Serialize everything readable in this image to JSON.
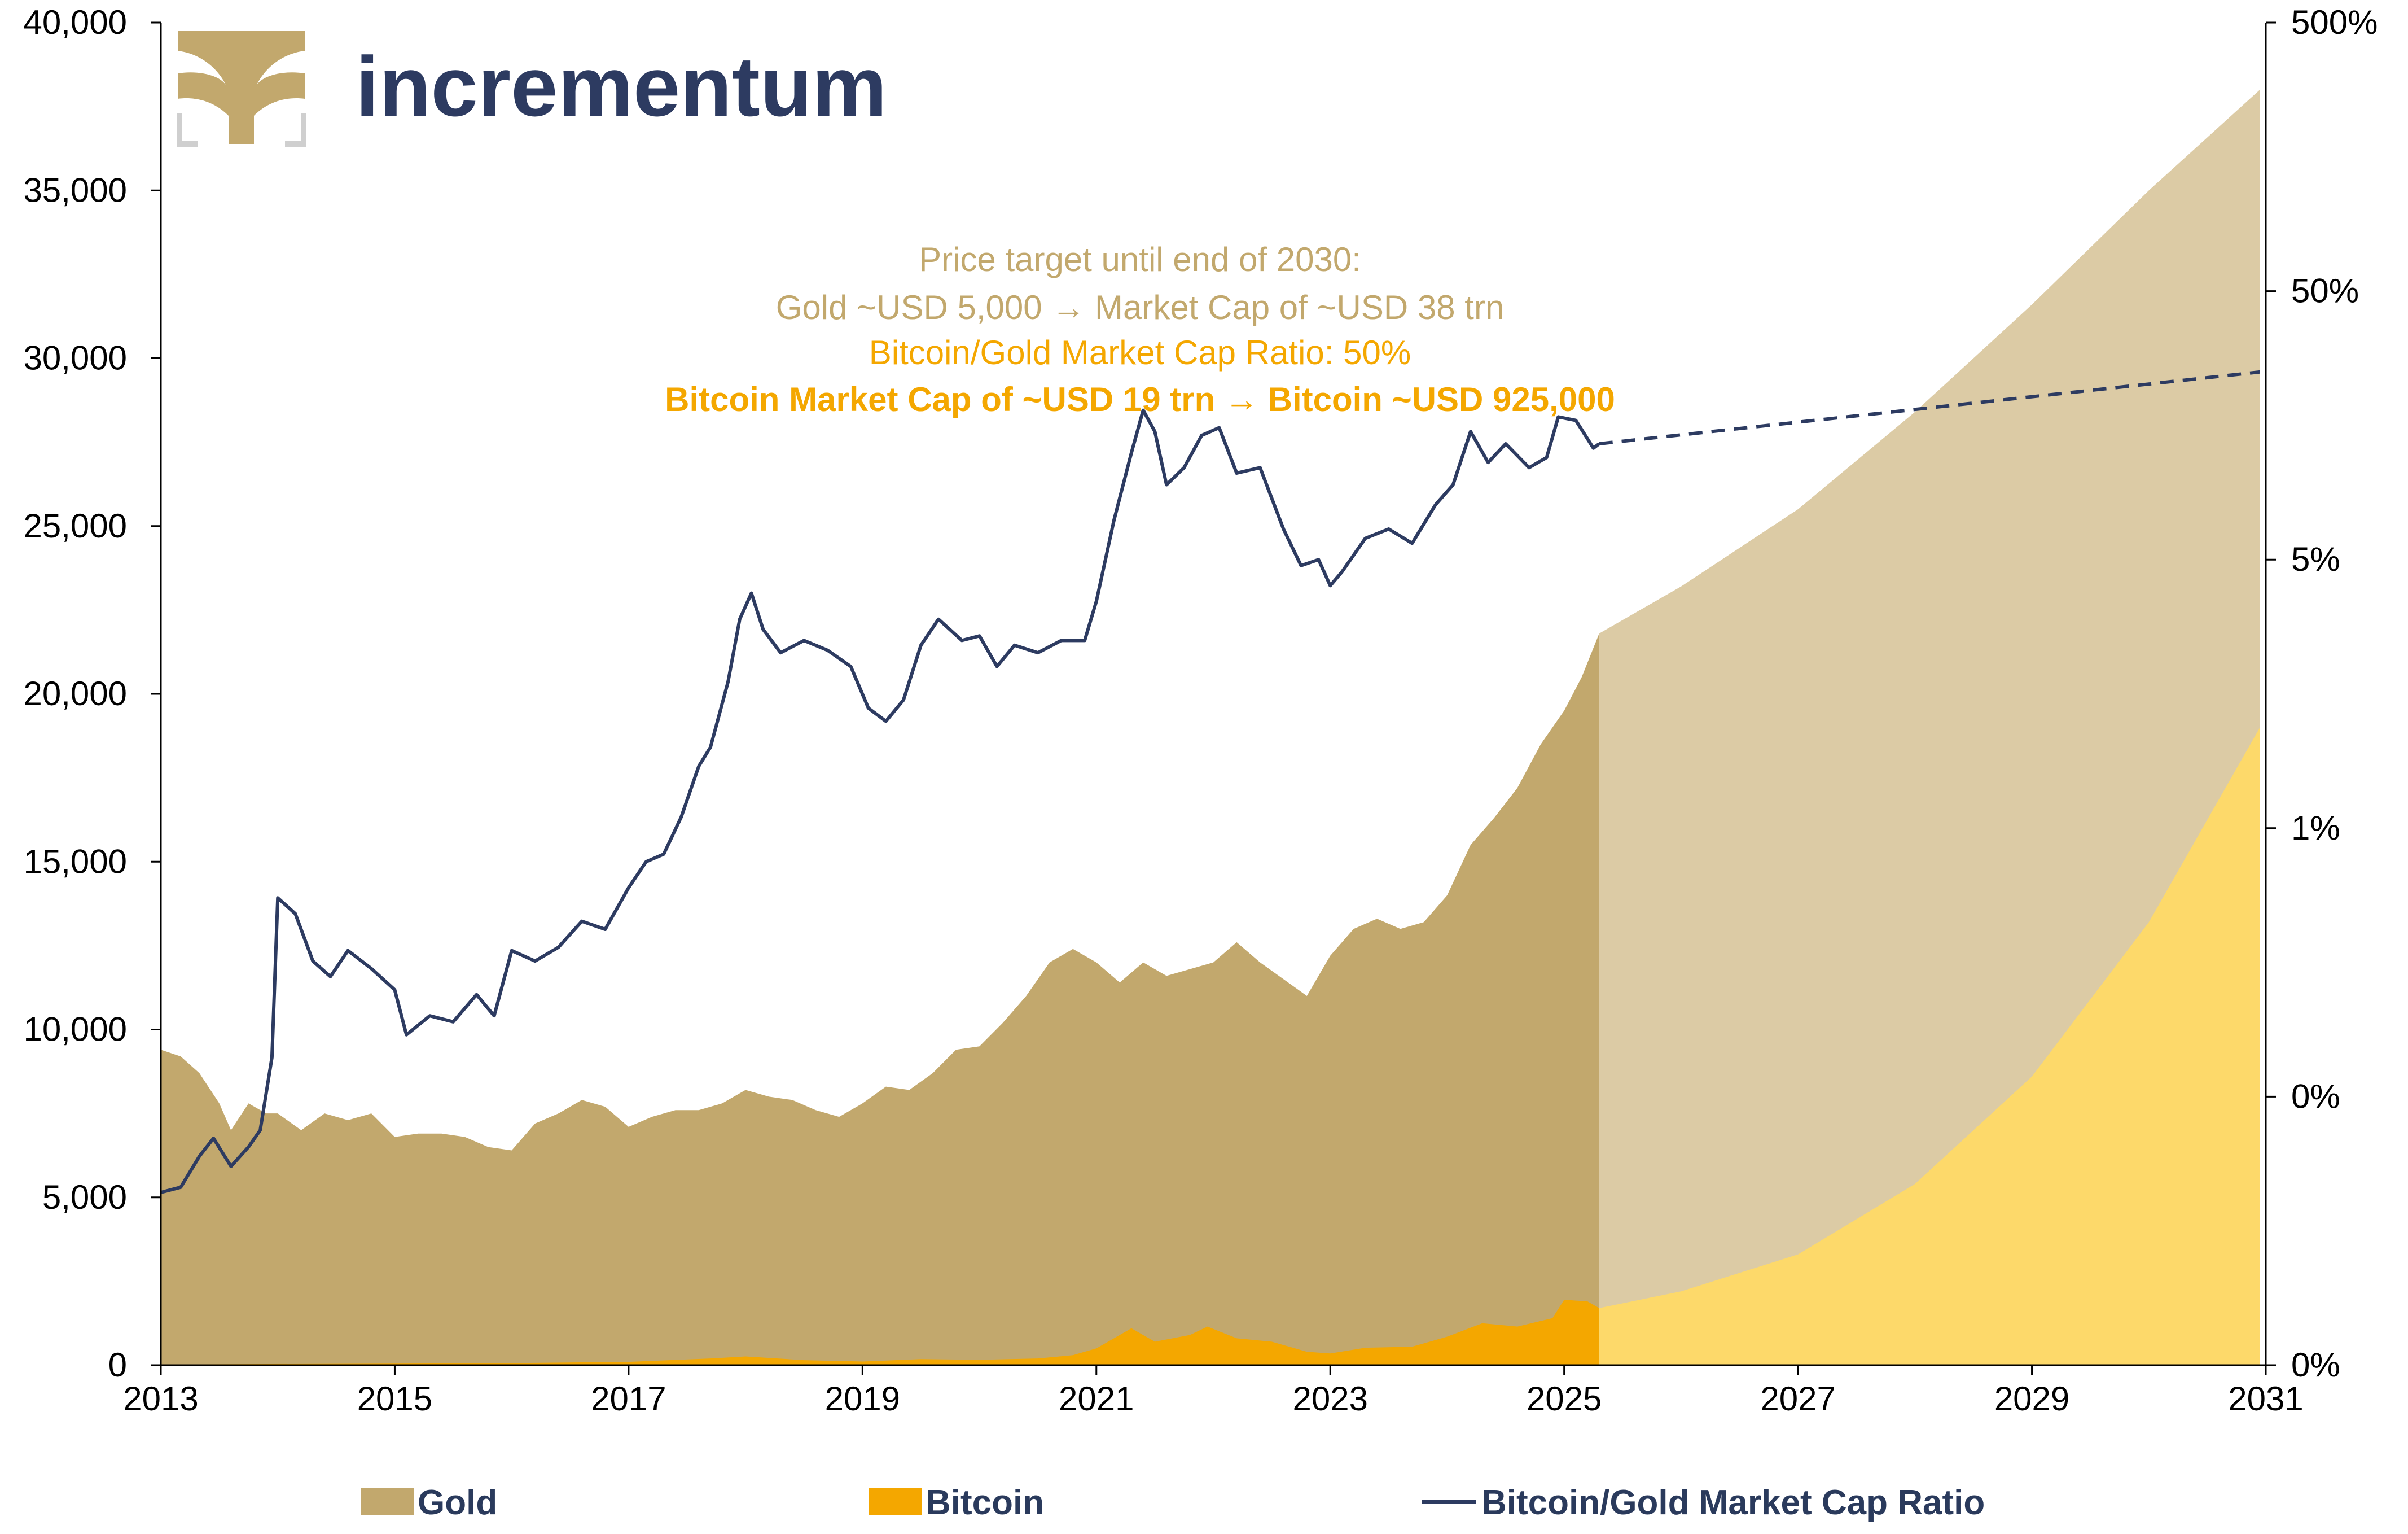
{
  "brand": {
    "name": "incrementum"
  },
  "colors": {
    "gold": "#c2a86d",
    "gold_projection": "#dccba5",
    "bitcoin": "#f4a700",
    "bitcoin_projection": "#fdd96a",
    "ratio_line": "#2d3b61",
    "anno_gold": "#c2a86d",
    "anno_bitcoin": "#f4a700"
  },
  "annotation": {
    "line1": "Price target until end of 2030:",
    "line2": "Gold ~USD 5,000 → Market Cap of ~USD 38 trn",
    "line3": "Bitcoin/Gold Market Cap Ratio: 50%",
    "line4": "Bitcoin Market Cap of ~USD 19 trn → Bitcoin ~USD 925,000"
  },
  "legend": {
    "gold": "Gold",
    "bitcoin": "Bitcoin",
    "ratio": "Bitcoin/Gold Market Cap Ratio"
  },
  "chart_data": {
    "type": "area",
    "x_axis": {
      "min": 2013,
      "max": 2031,
      "ticks": [
        "2013",
        "2015",
        "2017",
        "2019",
        "2021",
        "2023",
        "2025",
        "2027",
        "2029",
        "2031"
      ]
    },
    "y_left": {
      "min": 0,
      "max": 40000,
      "ticks": [
        "0",
        "5,000",
        "10,000",
        "15,000",
        "20,000",
        "25,000",
        "30,000",
        "35,000",
        "40,000"
      ]
    },
    "y_right": {
      "scale": "log",
      "tick_labels": [
        "0%",
        "0%",
        "1%",
        "5%",
        "50%",
        "500%"
      ],
      "tick_values": [
        0.0001,
        0.001,
        0.01,
        0.1,
        1,
        10
      ]
    },
    "series": [
      {
        "name": "Gold",
        "kind": "area",
        "axis": "left",
        "points": [
          [
            2013.0,
            9400
          ],
          [
            2013.17,
            9200
          ],
          [
            2013.33,
            8700
          ],
          [
            2013.5,
            7800
          ],
          [
            2013.6,
            7000
          ],
          [
            2013.75,
            7800
          ],
          [
            2013.9,
            7500
          ],
          [
            2014.0,
            7500
          ],
          [
            2014.2,
            7000
          ],
          [
            2014.4,
            7500
          ],
          [
            2014.6,
            7300
          ],
          [
            2014.8,
            7500
          ],
          [
            2015.0,
            6800
          ],
          [
            2015.2,
            6900
          ],
          [
            2015.4,
            6900
          ],
          [
            2015.6,
            6800
          ],
          [
            2015.8,
            6500
          ],
          [
            2016.0,
            6400
          ],
          [
            2016.2,
            7200
          ],
          [
            2016.4,
            7500
          ],
          [
            2016.6,
            7900
          ],
          [
            2016.8,
            7700
          ],
          [
            2017.0,
            7100
          ],
          [
            2017.2,
            7400
          ],
          [
            2017.4,
            7600
          ],
          [
            2017.6,
            7600
          ],
          [
            2017.8,
            7800
          ],
          [
            2018.0,
            8200
          ],
          [
            2018.2,
            8000
          ],
          [
            2018.4,
            7900
          ],
          [
            2018.6,
            7600
          ],
          [
            2018.8,
            7400
          ],
          [
            2019.0,
            7800
          ],
          [
            2019.2,
            8300
          ],
          [
            2019.4,
            8200
          ],
          [
            2019.6,
            8700
          ],
          [
            2019.8,
            9400
          ],
          [
            2020.0,
            9500
          ],
          [
            2020.2,
            10200
          ],
          [
            2020.4,
            11000
          ],
          [
            2020.6,
            12000
          ],
          [
            2020.8,
            12400
          ],
          [
            2021.0,
            12000
          ],
          [
            2021.2,
            11400
          ],
          [
            2021.4,
            12000
          ],
          [
            2021.6,
            11600
          ],
          [
            2021.8,
            11800
          ],
          [
            2022.0,
            12000
          ],
          [
            2022.2,
            12600
          ],
          [
            2022.4,
            12000
          ],
          [
            2022.6,
            11500
          ],
          [
            2022.8,
            11000
          ],
          [
            2023.0,
            12200
          ],
          [
            2023.2,
            13000
          ],
          [
            2023.4,
            13300
          ],
          [
            2023.6,
            13000
          ],
          [
            2023.8,
            13200
          ],
          [
            2024.0,
            14000
          ],
          [
            2024.2,
            15500
          ],
          [
            2024.4,
            16300
          ],
          [
            2024.6,
            17200
          ],
          [
            2024.8,
            18500
          ],
          [
            2025.0,
            19500
          ],
          [
            2025.15,
            20500
          ],
          [
            2025.3,
            21800
          ]
        ]
      },
      {
        "name": "Gold (projection)",
        "kind": "area",
        "axis": "left",
        "points": [
          [
            2025.3,
            21800
          ],
          [
            2026.0,
            23200
          ],
          [
            2027.0,
            25500
          ],
          [
            2028.0,
            28400
          ],
          [
            2029.0,
            31600
          ],
          [
            2030.0,
            35000
          ],
          [
            2030.95,
            38000
          ]
        ]
      },
      {
        "name": "Bitcoin",
        "kind": "area",
        "axis": "left",
        "points": [
          [
            2013.0,
            20
          ],
          [
            2016.0,
            60
          ],
          [
            2017.0,
            100
          ],
          [
            2017.7,
            200
          ],
          [
            2018.0,
            260
          ],
          [
            2018.5,
            150
          ],
          [
            2019.0,
            110
          ],
          [
            2019.5,
            180
          ],
          [
            2020.0,
            160
          ],
          [
            2020.5,
            200
          ],
          [
            2020.8,
            300
          ],
          [
            2021.0,
            500
          ],
          [
            2021.3,
            1100
          ],
          [
            2021.5,
            700
          ],
          [
            2021.8,
            900
          ],
          [
            2021.95,
            1150
          ],
          [
            2022.2,
            800
          ],
          [
            2022.5,
            700
          ],
          [
            2022.8,
            400
          ],
          [
            2023.0,
            350
          ],
          [
            2023.3,
            520
          ],
          [
            2023.7,
            550
          ],
          [
            2024.0,
            850
          ],
          [
            2024.3,
            1250
          ],
          [
            2024.6,
            1150
          ],
          [
            2024.9,
            1400
          ],
          [
            2025.0,
            1950
          ],
          [
            2025.2,
            1900
          ],
          [
            2025.3,
            1700
          ]
        ]
      },
      {
        "name": "Bitcoin (projection)",
        "kind": "area",
        "axis": "left",
        "points": [
          [
            2025.3,
            1700
          ],
          [
            2026.0,
            2200
          ],
          [
            2027.0,
            3300
          ],
          [
            2028.0,
            5400
          ],
          [
            2029.0,
            8600
          ],
          [
            2030.0,
            13200
          ],
          [
            2030.95,
            19000
          ]
        ]
      },
      {
        "name": "Bitcoin/Gold Market Cap Ratio",
        "kind": "line",
        "axis": "right",
        "points": [
          [
            2013.0,
            0.00044
          ],
          [
            2013.17,
            0.00046
          ],
          [
            2013.33,
            0.0006
          ],
          [
            2013.45,
            0.0007
          ],
          [
            2013.6,
            0.00055
          ],
          [
            2013.75,
            0.00065
          ],
          [
            2013.85,
            0.00075
          ],
          [
            2013.95,
            0.0014
          ],
          [
            2014.0,
            0.0055
          ],
          [
            2014.15,
            0.0048
          ],
          [
            2014.3,
            0.0032
          ],
          [
            2014.45,
            0.0028
          ],
          [
            2014.6,
            0.0035
          ],
          [
            2014.8,
            0.003
          ],
          [
            2015.0,
            0.0025
          ],
          [
            2015.1,
            0.0017
          ],
          [
            2015.3,
            0.002
          ],
          [
            2015.5,
            0.0019
          ],
          [
            2015.7,
            0.0024
          ],
          [
            2015.85,
            0.002
          ],
          [
            2016.0,
            0.0035
          ],
          [
            2016.2,
            0.0032
          ],
          [
            2016.4,
            0.0036
          ],
          [
            2016.6,
            0.0045
          ],
          [
            2016.8,
            0.0042
          ],
          [
            2017.0,
            0.006
          ],
          [
            2017.15,
            0.0075
          ],
          [
            2017.3,
            0.008
          ],
          [
            2017.45,
            0.011
          ],
          [
            2017.6,
            0.017
          ],
          [
            2017.7,
            0.02
          ],
          [
            2017.85,
            0.035
          ],
          [
            2017.95,
            0.06
          ],
          [
            2018.05,
            0.075
          ],
          [
            2018.15,
            0.055
          ],
          [
            2018.3,
            0.045
          ],
          [
            2018.5,
            0.05
          ],
          [
            2018.7,
            0.046
          ],
          [
            2018.9,
            0.04
          ],
          [
            2019.05,
            0.028
          ],
          [
            2019.2,
            0.025
          ],
          [
            2019.35,
            0.03
          ],
          [
            2019.5,
            0.048
          ],
          [
            2019.65,
            0.06
          ],
          [
            2019.85,
            0.05
          ],
          [
            2020.0,
            0.052
          ],
          [
            2020.15,
            0.04
          ],
          [
            2020.3,
            0.048
          ],
          [
            2020.5,
            0.045
          ],
          [
            2020.7,
            0.05
          ],
          [
            2020.9,
            0.05
          ],
          [
            2021.0,
            0.07
          ],
          [
            2021.15,
            0.14
          ],
          [
            2021.3,
            0.25
          ],
          [
            2021.4,
            0.36
          ],
          [
            2021.5,
            0.3
          ],
          [
            2021.6,
            0.19
          ],
          [
            2021.75,
            0.22
          ],
          [
            2021.9,
            0.29
          ],
          [
            2022.05,
            0.31
          ],
          [
            2022.2,
            0.21
          ],
          [
            2022.4,
            0.22
          ],
          [
            2022.6,
            0.13
          ],
          [
            2022.75,
            0.095
          ],
          [
            2022.9,
            0.1
          ],
          [
            2023.0,
            0.08
          ],
          [
            2023.1,
            0.09
          ],
          [
            2023.3,
            0.12
          ],
          [
            2023.5,
            0.13
          ],
          [
            2023.7,
            0.115
          ],
          [
            2023.9,
            0.16
          ],
          [
            2024.05,
            0.19
          ],
          [
            2024.2,
            0.3
          ],
          [
            2024.35,
            0.23
          ],
          [
            2024.5,
            0.27
          ],
          [
            2024.7,
            0.22
          ],
          [
            2024.85,
            0.24
          ],
          [
            2024.95,
            0.34
          ],
          [
            2025.1,
            0.33
          ],
          [
            2025.25,
            0.26
          ],
          [
            2025.3,
            0.27
          ]
        ]
      },
      {
        "name": "Bitcoin/Gold Market Cap Ratio (projection)",
        "kind": "dashed-line",
        "axis": "right",
        "points": [
          [
            2025.3,
            0.27
          ],
          [
            2030.95,
            0.5
          ]
        ]
      }
    ]
  }
}
